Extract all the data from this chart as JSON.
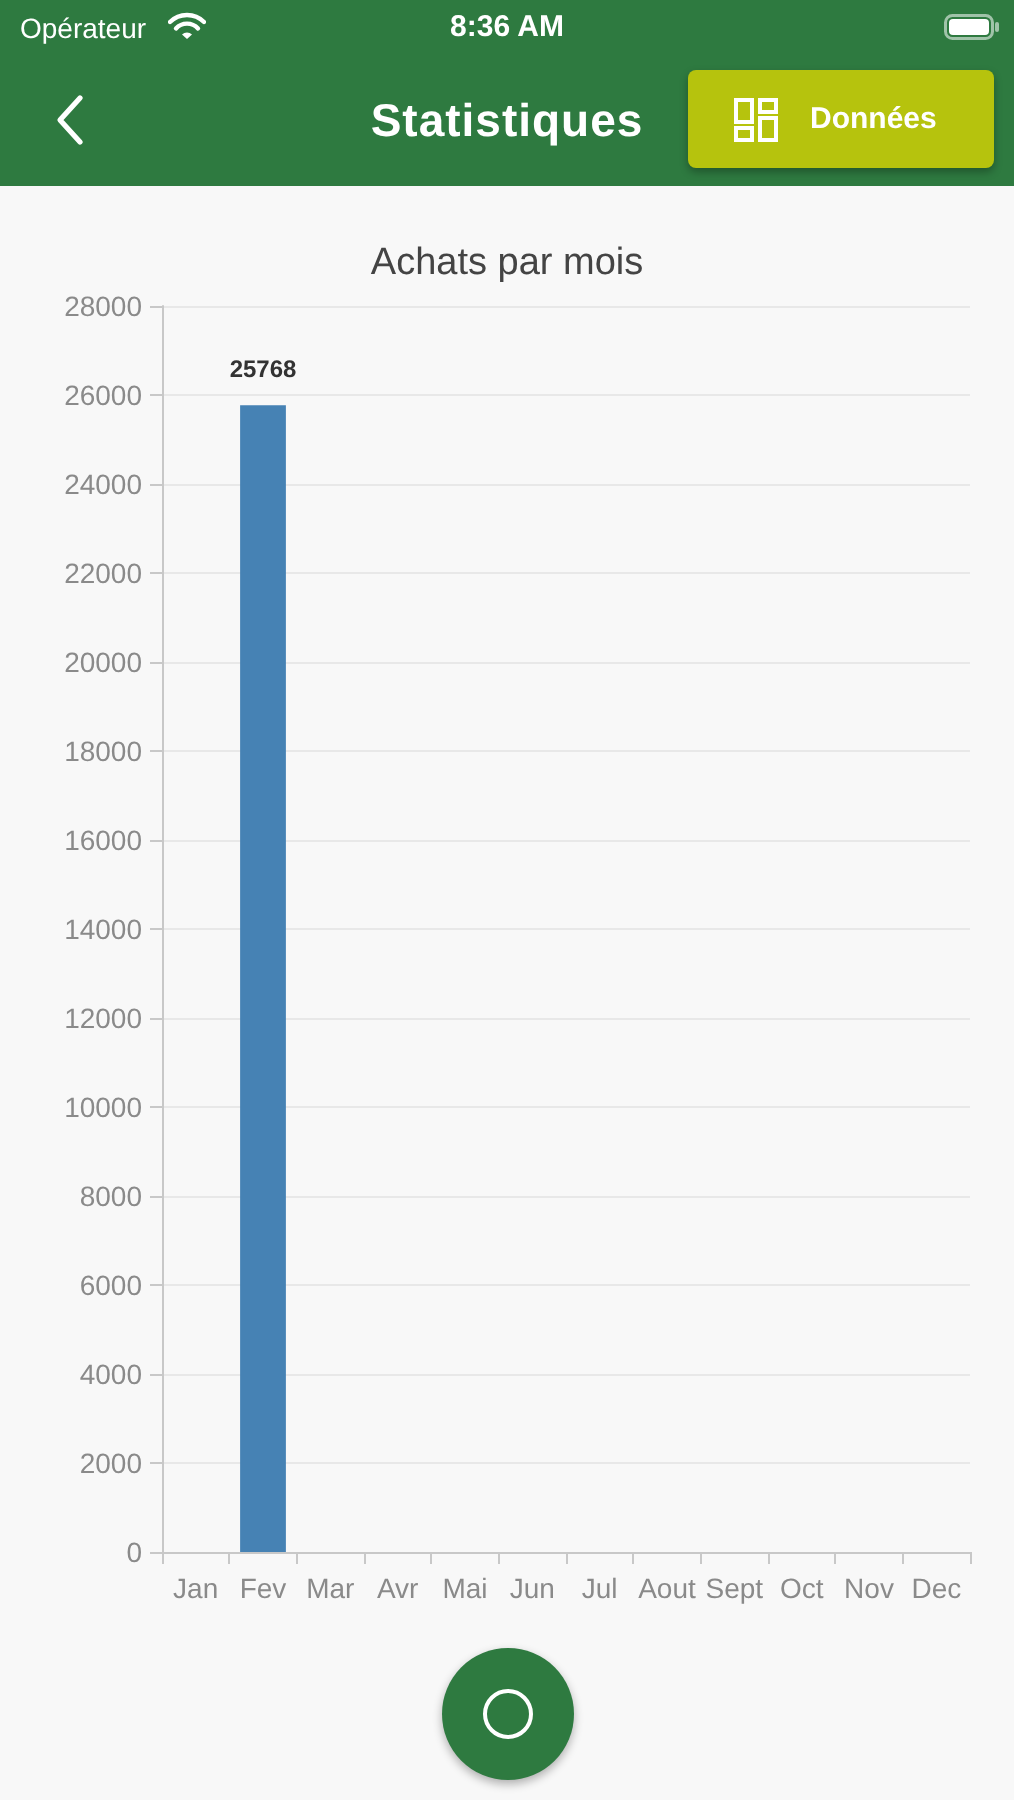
{
  "chart_data": {
    "type": "bar",
    "title": "Achats par mois",
    "annotations": [
      "Opérateur",
      "8:36 AM",
      "Statistiques",
      "Données"
    ],
    "categories": [
      "Jan",
      "Fev",
      "Mar",
      "Avr",
      "Mai",
      "Jun",
      "Jul",
      "Aout",
      "Sept",
      "Oct",
      "Nov",
      "Dec"
    ],
    "values": [
      0,
      25768,
      0,
      0,
      0,
      0,
      0,
      0,
      0,
      0,
      0,
      0
    ],
    "value_labels": [
      null,
      "25768",
      null,
      null,
      null,
      null,
      null,
      null,
      null,
      null,
      null,
      null
    ],
    "color": "#4682b4",
    "ylim": [
      0,
      28000
    ],
    "yticks": [
      0,
      2000,
      4000,
      6000,
      8000,
      10000,
      12000,
      14000,
      16000,
      18000,
      20000,
      22000,
      24000,
      26000,
      28000
    ],
    "grid": "y"
  }
}
